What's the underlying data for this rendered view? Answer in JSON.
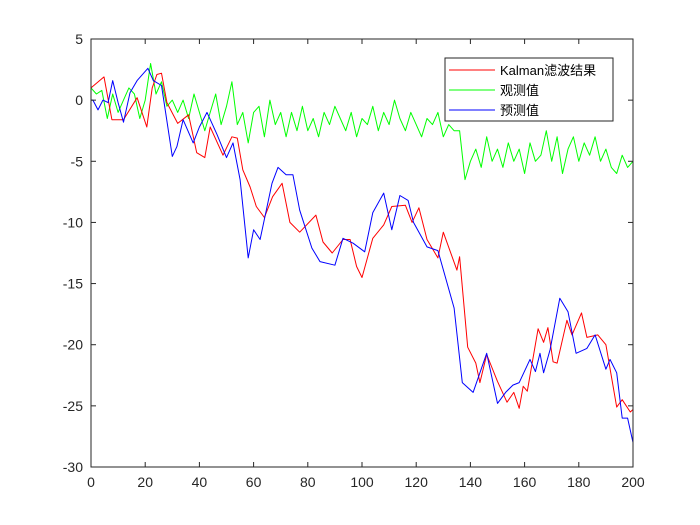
{
  "chart_data": {
    "type": "line",
    "title": "",
    "xlabel": "",
    "ylabel": "",
    "xlim": [
      0,
      200
    ],
    "ylim": [
      -30,
      5
    ],
    "xticks": [
      0,
      20,
      40,
      60,
      80,
      100,
      120,
      140,
      160,
      180,
      200
    ],
    "yticks": [
      5,
      0,
      -5,
      -10,
      -15,
      -20,
      -25,
      -30
    ],
    "xtick_labels": [
      "0",
      "20",
      "40",
      "60",
      "80",
      "100",
      "120",
      "140",
      "160",
      "180",
      "200"
    ],
    "ytick_labels": [
      "5",
      "0",
      "-5",
      "-10",
      "-15",
      "-20",
      "-25",
      "-30"
    ],
    "grid": false,
    "legend_position": "top-right",
    "series": [
      {
        "name": "Kalman滤波结果",
        "color": "#ff0000",
        "x": [
          0,
          4.8,
          7.7,
          12,
          17,
          20.6,
          22.6,
          24.3,
          26,
          28,
          32,
          36,
          39,
          42,
          44,
          48.7,
          52,
          54,
          56,
          58.7,
          61,
          64,
          67,
          70.5,
          73.4,
          77,
          83,
          85.6,
          89,
          93,
          95.6,
          98,
          100,
          104,
          108,
          111,
          116,
          118.5,
          121,
          124,
          128,
          130,
          135,
          136,
          139,
          142,
          143.5,
          146,
          150,
          153.5,
          156,
          158,
          159.5,
          161,
          165,
          167,
          168.6,
          170.5,
          172,
          175.6,
          177.5,
          181,
          183,
          187,
          190,
          194,
          196,
          199,
          200
        ],
        "y": [
          1,
          1.9,
          -1.6,
          -1.6,
          0.2,
          -2.2,
          1,
          2.1,
          2.2,
          -0.2,
          -1.9,
          -1.2,
          -4.3,
          -4.7,
          -2.2,
          -4.5,
          -3,
          -3.1,
          -5.7,
          -7.1,
          -8.7,
          -9.6,
          -7.9,
          -6.8,
          -10,
          -10.8,
          -9.4,
          -11.6,
          -12.5,
          -11.4,
          -11.4,
          -13.6,
          -14.5,
          -11.3,
          -10.2,
          -8.7,
          -8.6,
          -10,
          -8.8,
          -11.4,
          -12.9,
          -10.8,
          -13.9,
          -12.8,
          -20.2,
          -21.5,
          -23.1,
          -20.8,
          -23,
          -24.7,
          -23.9,
          -25.2,
          -23.4,
          -23.8,
          -18.7,
          -19.8,
          -18.6,
          -21.4,
          -21.5,
          -18,
          -19.2,
          -17.4,
          -19.4,
          -19.2,
          -20,
          -25.1,
          -24.5,
          -25.5,
          -25.3
        ]
      },
      {
        "name": "观测值",
        "color": "#00ff00",
        "x_step": 2,
        "y": [
          1,
          0.5,
          0.8,
          -1.5,
          0.5,
          -1,
          0,
          1,
          0.5,
          -1.5,
          0,
          3,
          0.5,
          1.5,
          -0.5,
          0,
          -1,
          0,
          -1.5,
          0.5,
          -1,
          -2.5,
          -1,
          0.5,
          -2,
          -0.5,
          1.5,
          -2,
          -1,
          -3.5,
          -1,
          -0.5,
          -3,
          0,
          -2,
          -1,
          -3,
          -1,
          -2.5,
          -0.5,
          -2.5,
          -1.5,
          -3,
          -1,
          -2,
          -0.5,
          -1.5,
          -2.5,
          -1,
          -3,
          -1.5,
          -2,
          -0.5,
          -2.5,
          -1,
          -2,
          0,
          -1.5,
          -2.5,
          -1,
          -2,
          -3,
          -1.5,
          -2,
          -1,
          -3,
          -2,
          -2.5,
          -2.5,
          -6.5,
          -5,
          -4,
          -5.5,
          -3,
          -5,
          -4,
          -5.5,
          -3.5,
          -5,
          -4,
          -6,
          -3.5,
          -5,
          -4.5,
          -2.5,
          -5,
          -3,
          -6,
          -4,
          -3,
          -5,
          -3.5,
          -4.5,
          -3,
          -5,
          -4,
          -5.5,
          -6,
          -4.5,
          -5.5,
          -5
        ]
      },
      {
        "name": "预测值",
        "color": "#0000ff",
        "x": [
          0,
          0.7,
          2.6,
          4.4,
          6.3,
          8,
          10,
          12,
          14.4,
          17,
          21,
          23,
          26,
          30,
          31.7,
          34,
          37.7,
          40,
          42.8,
          46.5,
          50,
          52.4,
          55,
          58,
          60,
          62.4,
          66.8,
          69,
          72,
          74.5,
          77,
          81.5,
          84.5,
          90,
          93,
          96.7,
          101,
          104,
          108,
          111,
          114,
          117,
          119,
          124,
          128,
          134,
          137,
          141,
          146,
          150,
          153,
          155.7,
          158,
          162,
          164,
          165.7,
          167,
          169.4,
          173,
          176,
          179,
          183,
          186,
          190,
          191.5,
          194,
          196,
          198,
          200
        ],
        "y": [
          0,
          0,
          -0.8,
          0,
          -0.2,
          1.6,
          -0.2,
          -1.8,
          0.6,
          1.6,
          2.6,
          1.6,
          1.2,
          -4.6,
          -3.8,
          -1.6,
          -3.5,
          -2.2,
          -1,
          -2.8,
          -4.7,
          -3.5,
          -6.5,
          -12.9,
          -10.6,
          -11.4,
          -6.8,
          -5.5,
          -6.1,
          -6.1,
          -9,
          -12.1,
          -13.2,
          -13.5,
          -11.3,
          -11.7,
          -12.4,
          -9.2,
          -7.6,
          -10.6,
          -7.8,
          -8.2,
          -10,
          -12,
          -12.3,
          -17,
          -23.1,
          -23.9,
          -20.7,
          -24.8,
          -23.9,
          -23.3,
          -23.1,
          -21.2,
          -22.2,
          -20.7,
          -22.3,
          -20.4,
          -16.2,
          -17.3,
          -20.7,
          -20.3,
          -19.2,
          -22,
          -21.2,
          -22.3,
          -26,
          -26,
          -28
        ]
      }
    ]
  }
}
